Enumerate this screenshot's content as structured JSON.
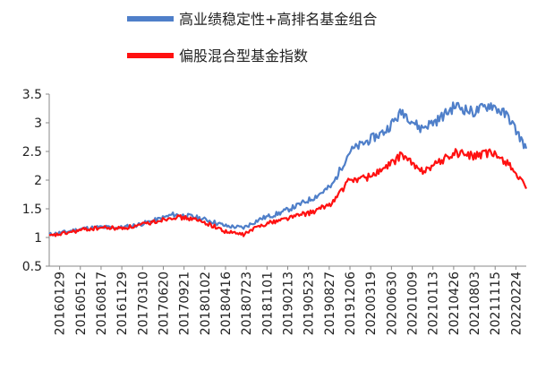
{
  "chart_data": {
    "type": "line",
    "title": "",
    "xlabel": "",
    "ylabel": "",
    "ylim": [
      0.5,
      3.5
    ],
    "yticks": [
      "0.5",
      "1",
      "1.5",
      "2",
      "2.5",
      "3",
      "3.5"
    ],
    "grid": false,
    "legend_position": "top",
    "x_tick_labels": [
      "20160129",
      "20160512",
      "20160817",
      "20161129",
      "20170310",
      "20170620",
      "20170921",
      "20180102",
      "20180416",
      "20180723",
      "20181101",
      "20190213",
      "20190523",
      "20190827",
      "20191206",
      "20200319",
      "20200630",
      "20201009",
      "20210113",
      "20210426",
      "20210803",
      "20211115",
      "20220224"
    ],
    "series": [
      {
        "name": "高业绩稳定性+高排名基金组合",
        "color": "#4f7fc9",
        "values": [
          1.05,
          1.1,
          1.16,
          1.18,
          1.17,
          1.22,
          1.3,
          1.4,
          1.37,
          1.3,
          1.2,
          1.17,
          1.33,
          1.42,
          1.55,
          1.7,
          1.9,
          2.5,
          2.68,
          2.85,
          3.2,
          2.9,
          3.05,
          3.3,
          3.18,
          3.32,
          3.1,
          2.55
        ]
      },
      {
        "name": "偏股混合型基金指数",
        "color": "#ff1111",
        "values": [
          1.02,
          1.08,
          1.14,
          1.17,
          1.16,
          1.2,
          1.28,
          1.36,
          1.33,
          1.24,
          1.1,
          1.05,
          1.22,
          1.3,
          1.38,
          1.45,
          1.6,
          2.0,
          2.05,
          2.2,
          2.45,
          2.15,
          2.3,
          2.48,
          2.42,
          2.47,
          2.3,
          1.85
        ]
      }
    ]
  }
}
